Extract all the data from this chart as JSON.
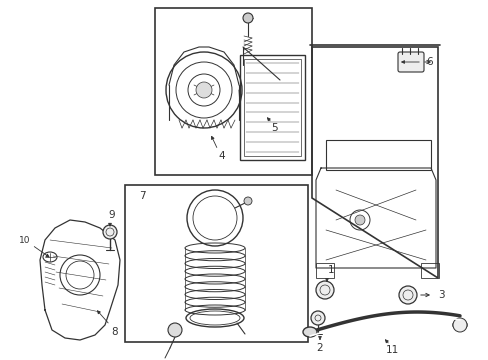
{
  "bg_color": "#ffffff",
  "line_color": "#333333",
  "fig_width": 4.89,
  "fig_height": 3.6,
  "dpi": 100,
  "label_fontsize": 7.5,
  "label_small_fontsize": 6.5
}
